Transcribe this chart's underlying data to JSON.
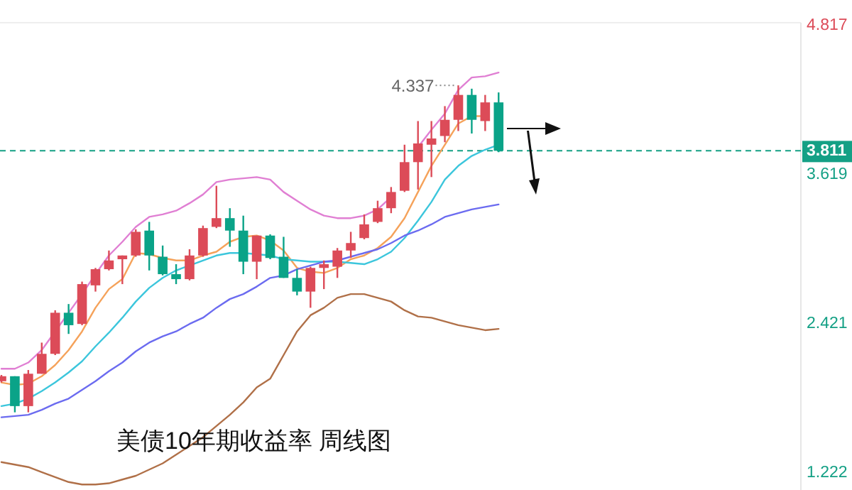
{
  "chart_data": {
    "type": "candlestick",
    "title": "美债10年期收益率  周线图",
    "tick_labels": "y",
    "categories": [
      null,
      null,
      null,
      null,
      null,
      null,
      null,
      null,
      null,
      null,
      null,
      null,
      null,
      null,
      null,
      null,
      null,
      null,
      null,
      null,
      null,
      null,
      null,
      null,
      null,
      null,
      null,
      null,
      null,
      null,
      null,
      null,
      null,
      null,
      null,
      null,
      null,
      null
    ],
    "ylim": [
      1.086,
      4.84
    ],
    "yticks": [
      4.817,
      3.619,
      2.421,
      1.222
    ],
    "ohlc": [
      [
        1.96,
        2.01,
        1.95,
        2.0
      ],
      [
        2.0,
        2.0,
        1.71,
        1.76
      ],
      [
        1.76,
        2.05,
        1.71,
        2.02
      ],
      [
        2.02,
        2.27,
        2.02,
        2.18
      ],
      [
        2.18,
        2.53,
        2.17,
        2.51
      ],
      [
        2.51,
        2.58,
        2.34,
        2.41
      ],
      [
        2.42,
        2.76,
        2.41,
        2.74
      ],
      [
        2.73,
        2.87,
        2.68,
        2.86
      ],
      [
        2.86,
        3.01,
        2.85,
        2.93
      ],
      [
        2.94,
        2.97,
        2.74,
        2.97
      ],
      [
        2.97,
        3.18,
        2.96,
        3.16
      ],
      [
        3.17,
        3.24,
        2.85,
        2.97
      ],
      [
        2.96,
        3.05,
        2.81,
        2.82
      ],
      [
        2.82,
        2.9,
        2.74,
        2.78
      ],
      [
        2.78,
        3.02,
        2.77,
        2.97
      ],
      [
        2.97,
        3.21,
        2.96,
        3.19
      ],
      [
        3.2,
        3.53,
        3.19,
        3.27
      ],
      [
        3.27,
        3.35,
        3.04,
        3.17
      ],
      [
        3.17,
        3.29,
        2.82,
        2.92
      ],
      [
        2.92,
        3.13,
        2.78,
        3.13
      ],
      [
        3.13,
        3.14,
        2.94,
        2.95
      ],
      [
        2.96,
        3.12,
        2.79,
        2.79
      ],
      [
        2.79,
        2.86,
        2.65,
        2.68
      ],
      [
        2.68,
        2.88,
        2.55,
        2.87
      ],
      [
        2.87,
        2.93,
        2.7,
        2.9
      ],
      [
        2.88,
        3.03,
        2.79,
        3.01
      ],
      [
        3.01,
        3.16,
        2.95,
        3.07
      ],
      [
        3.11,
        3.3,
        3.1,
        3.22
      ],
      [
        3.24,
        3.41,
        3.23,
        3.35
      ],
      [
        3.35,
        3.52,
        3.31,
        3.48
      ],
      [
        3.49,
        3.86,
        3.48,
        3.72
      ],
      [
        3.72,
        4.05,
        3.5,
        3.87
      ],
      [
        3.86,
        4.05,
        3.6,
        3.91
      ],
      [
        3.93,
        4.17,
        3.88,
        4.06
      ],
      [
        4.06,
        4.337,
        3.97,
        4.26
      ],
      [
        4.26,
        4.31,
        3.95,
        4.06
      ],
      [
        4.05,
        4.26,
        3.97,
        4.2
      ],
      [
        4.2,
        4.28,
        3.8,
        3.811
      ]
    ],
    "colors": [
      "#dc4b58",
      "#0aa388",
      "#dc4b58",
      "#dc4b58",
      "#dc4b58",
      "#0aa388",
      "#dc4b58",
      "#dc4b58",
      "#dc4b58",
      "#dc4b58",
      "#dc4b58",
      "#0aa388",
      "#0aa388",
      "#0aa388",
      "#dc4b58",
      "#dc4b58",
      "#dc4b58",
      "#0aa388",
      "#0aa388",
      "#dc4b58",
      "#0aa388",
      "#0aa388",
      "#0aa388",
      "#dc4b58",
      "#dc4b58",
      "#dc4b58",
      "#dc4b58",
      "#dc4b58",
      "#dc4b58",
      "#dc4b58",
      "#dc4b58",
      "#dc4b58",
      "#dc4b58",
      "#dc4b58",
      "#dc4b58",
      "#0aa388",
      "#dc4b58",
      "#0aa388"
    ],
    "series": [
      {
        "type": "line",
        "color": "#e07fd3",
        "values": [
          2.06,
          2.06,
          2.11,
          2.21,
          2.36,
          2.51,
          2.66,
          2.82,
          2.97,
          3.08,
          3.2,
          3.28,
          3.3,
          3.33,
          3.39,
          3.46,
          3.56,
          3.58,
          3.59,
          3.6,
          3.58,
          3.48,
          3.41,
          3.34,
          3.29,
          3.27,
          3.27,
          3.29,
          3.34,
          3.44,
          null,
          3.84,
          3.98,
          4.11,
          4.3,
          4.4,
          4.41,
          4.44
        ]
      },
      {
        "type": "line",
        "color": "#f5a25a",
        "values": [
          1.95,
          1.93,
          1.94,
          2.0,
          2.09,
          2.21,
          2.36,
          2.55,
          2.7,
          2.78,
          2.99,
          2.98,
          2.95,
          2.93,
          2.93,
          2.97,
          3.0,
          3.08,
          3.12,
          3.13,
          3.09,
          3.01,
          2.87,
          2.84,
          2.83,
          2.87,
          2.94,
          2.97,
          3.03,
          3.12,
          3.27,
          3.48,
          3.69,
          3.86,
          4.03,
          4.09,
          4.09,
          null
        ]
      },
      {
        "type": "line",
        "color": "#3cc6dc",
        "values": [
          1.76,
          1.78,
          1.82,
          1.88,
          1.95,
          2.03,
          2.12,
          2.24,
          2.35,
          2.47,
          2.6,
          2.71,
          2.79,
          2.85,
          2.89,
          2.93,
          2.97,
          2.99,
          2.99,
          2.98,
          2.97,
          2.94,
          2.93,
          2.92,
          2.92,
          2.92,
          2.91,
          2.9,
          2.94,
          3.0,
          3.11,
          3.25,
          3.4,
          3.58,
          3.69,
          3.77,
          3.82,
          3.86
        ]
      },
      {
        "type": "line",
        "color": "#6b6bf0",
        "values": [
          1.67,
          1.68,
          1.69,
          1.73,
          1.78,
          1.82,
          1.89,
          1.96,
          2.04,
          2.11,
          2.2,
          2.27,
          2.32,
          2.36,
          2.42,
          2.47,
          2.55,
          2.62,
          2.66,
          2.72,
          2.79,
          2.81,
          2.86,
          2.89,
          2.92,
          2.93,
          2.96,
          2.99,
          3.02,
          3.07,
          3.13,
          3.17,
          3.22,
          3.28,
          3.31,
          3.34,
          3.36,
          3.38
        ]
      },
      {
        "type": "line",
        "color": "#b07048",
        "values": [
          1.31,
          1.29,
          1.27,
          1.23,
          1.19,
          1.15,
          1.13,
          1.13,
          1.14,
          1.17,
          1.2,
          1.25,
          1.3,
          1.37,
          1.44,
          1.51,
          1.6,
          1.69,
          1.79,
          1.91,
          1.98,
          2.17,
          2.36,
          2.49,
          2.55,
          2.63,
          2.66,
          2.66,
          2.63,
          2.6,
          2.53,
          2.48,
          2.47,
          2.44,
          2.41,
          2.39,
          2.37,
          2.38
        ]
      }
    ],
    "ref_lines": [
      {
        "axis": "y",
        "value": 3.811,
        "label": "3.811",
        "color": "#14a085",
        "line_style": "dashed"
      }
    ],
    "annotations": [
      "4.337"
    ]
  }
}
